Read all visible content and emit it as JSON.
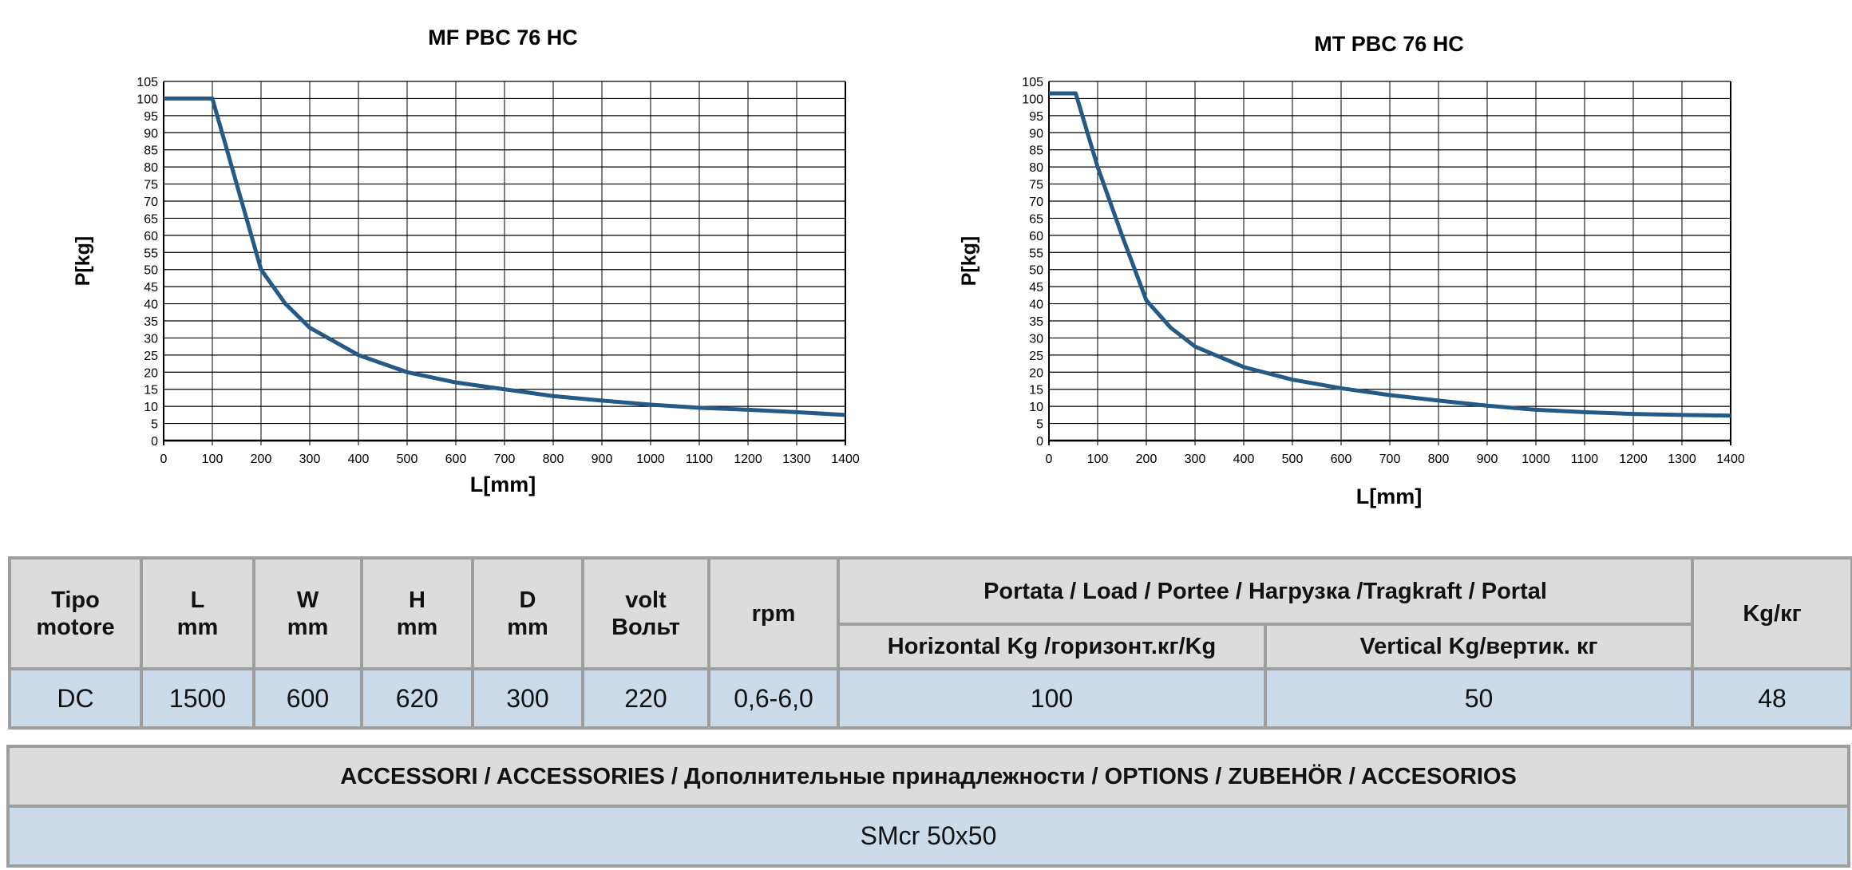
{
  "chart_data": [
    {
      "type": "line",
      "title": "MF PBC 76 HC",
      "xlabel": "L[mm]",
      "ylabel": "P[kg]",
      "xlim": [
        0,
        1400
      ],
      "ylim": [
        0,
        105
      ],
      "xticks": [
        0,
        100,
        200,
        300,
        400,
        500,
        600,
        700,
        800,
        900,
        1000,
        1100,
        1200,
        1300,
        1400
      ],
      "yticks": [
        0,
        5,
        10,
        15,
        20,
        25,
        30,
        35,
        40,
        45,
        50,
        55,
        60,
        65,
        70,
        75,
        80,
        85,
        90,
        95,
        100,
        105
      ],
      "grid": true,
      "line_color": "#245a85",
      "x": [
        0,
        100,
        200,
        250,
        300,
        400,
        500,
        600,
        700,
        800,
        900,
        1000,
        1100,
        1200,
        1300,
        1400
      ],
      "y": [
        100,
        100,
        50,
        40,
        33,
        25,
        20,
        17,
        15,
        13,
        11.7,
        10.5,
        9.6,
        9,
        8.3,
        7.5
      ]
    },
    {
      "type": "line",
      "title": "MT PBC 76 HC",
      "xlabel": "L[mm]",
      "ylabel": "P[kg]",
      "xlim": [
        0,
        1400
      ],
      "ylim": [
        0,
        105
      ],
      "xticks": [
        0,
        100,
        200,
        300,
        400,
        500,
        600,
        700,
        800,
        900,
        1000,
        1100,
        1200,
        1300,
        1400
      ],
      "yticks": [
        0,
        5,
        10,
        15,
        20,
        25,
        30,
        35,
        40,
        45,
        50,
        55,
        60,
        65,
        70,
        75,
        80,
        85,
        90,
        95,
        100,
        105
      ],
      "grid": true,
      "line_color": "#245a85",
      "x": [
        0,
        55,
        100,
        150,
        200,
        250,
        300,
        400,
        500,
        600,
        700,
        800,
        900,
        1000,
        1100,
        1200,
        1300,
        1400
      ],
      "y": [
        101.5,
        101.5,
        80,
        60,
        41,
        33,
        27.5,
        21.5,
        17.8,
        15.3,
        13.3,
        11.7,
        10.2,
        9,
        8.3,
        7.8,
        7.5,
        7.3
      ]
    }
  ],
  "spec_table": {
    "headers": {
      "tipo": [
        "Tipo",
        "motore"
      ],
      "L": [
        "L",
        "mm"
      ],
      "W": [
        "W",
        "mm"
      ],
      "H": [
        "H",
        "mm"
      ],
      "D": [
        "D",
        "mm"
      ],
      "volt": [
        "volt",
        "Вольт"
      ],
      "rpm": "rpm",
      "load": "Portata / Load / Portee / Нагрузка /Tragkraft / Portal",
      "horizontal": "Horizontal Kg /горизонт.кг/Kg",
      "vertical": "Vertical Kg/вертик. кг",
      "weight": "Kg/кг"
    },
    "row": {
      "tipo": "DC",
      "L": "1500",
      "W": "600",
      "H": "620",
      "D": "300",
      "volt": "220",
      "rpm": "0,6-6,0",
      "horizontal": "100",
      "vertical": "50",
      "weight": "48"
    },
    "header_bg": "#dcdcdc",
    "row_bg": "#ccdbe9"
  },
  "accessories": {
    "header": "ACCESSORI /  ACCESSORIES / Дополнительные принадлежности /  OPTIONS /  ZUBEHÖR /  ACCESORIOS",
    "value": "SMcr 50x50"
  }
}
